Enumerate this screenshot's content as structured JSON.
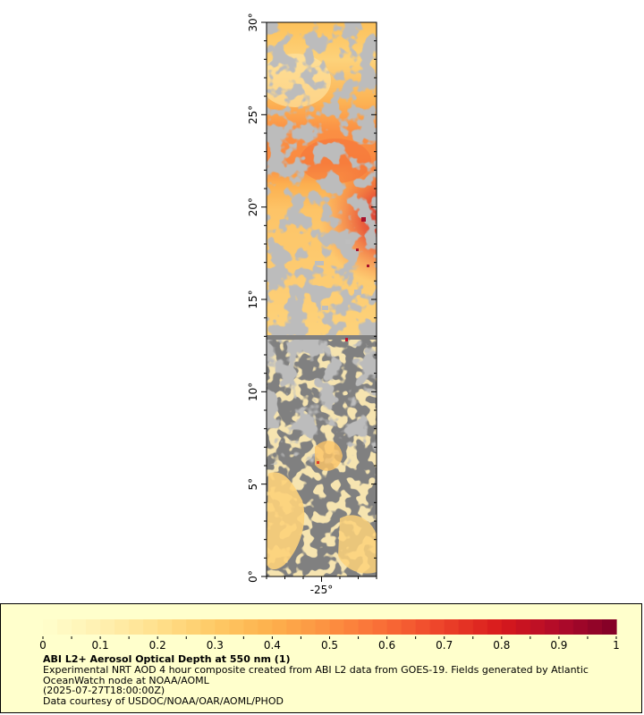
{
  "map": {
    "lat_ticks": [
      "0°",
      "5°",
      "10°",
      "15°",
      "20°",
      "25°",
      "30°"
    ],
    "lat_values": [
      0,
      5,
      10,
      15,
      20,
      25,
      30
    ],
    "lon_ticks": [
      "-25°"
    ],
    "lon_values": [
      -25
    ],
    "lat_range": [
      0,
      30
    ],
    "lon_range": [
      -28,
      -22
    ],
    "colors": {
      "land_mask": "#808080",
      "cloud_gray": "#bebebe"
    }
  },
  "legend": {
    "tick_labels": [
      "0",
      "0.1",
      "0.2",
      "0.3",
      "0.4",
      "0.5",
      "0.6",
      "0.7",
      "0.8",
      "0.9",
      "1"
    ],
    "range": [
      0,
      1
    ],
    "colors": [
      "#ffffcc",
      "#fff0b0",
      "#ffe08c",
      "#fec965",
      "#fdb04c",
      "#fc9040",
      "#f86a36",
      "#ec4129",
      "#d7191c",
      "#b00a2a",
      "#800026"
    ],
    "title": "ABI L2+ Aerosol Optical Depth at 550 nm (1)",
    "description": "Experimental NRT AOD 4 hour composite created from ABI L2 data from GOES-19. Fields generated by Atlantic OceanWatch node at NOAA/AOML",
    "time": "(2025-07-27T18:00:00Z)",
    "credit": "Data courtesy of USDOC/NOAA/OAR/AOML/PHOD"
  }
}
